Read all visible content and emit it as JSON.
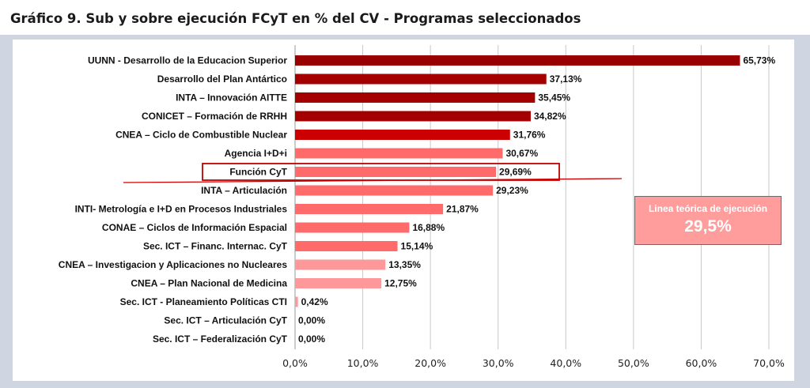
{
  "title": "Gráfico 9. Sub y sobre ejecución FCyT en % del CV - Programas seleccionados",
  "chart_data": {
    "type": "bar",
    "orientation": "horizontal",
    "categories": [
      "UUNN - Desarrollo de la Educacion Superior",
      "Desarrollo del Plan Antártico",
      "INTA – Innovación AITTE",
      "CONICET – Formación de RRHH",
      "CNEA – Ciclo de Combustible Nuclear",
      "Agencia I+D+i",
      "Función CyT",
      "INTA – Articulación",
      "INTI- Metrología e I+D en Procesos Industriales",
      "CONAE – Ciclos de Información Espacial",
      "Sec. ICT – Financ. Internac. CyT",
      "CNEA – Investigacion y Aplicaciones no Nucleares",
      "CNEA – Plan Nacional de Medicina",
      "Sec. ICT -  Planeamiento Políticas CTI",
      "Sec. ICT – Articulación CyT",
      "Sec. ICT – Federalización CyT"
    ],
    "values": [
      65.73,
      37.13,
      35.45,
      34.82,
      31.76,
      30.67,
      29.69,
      29.23,
      21.87,
      16.88,
      15.14,
      13.35,
      12.75,
      0.42,
      0.0,
      0.0
    ],
    "value_labels": [
      "65,73%",
      "37,13%",
      "35,45%",
      "34,82%",
      "31,76%",
      "30,67%",
      "29,69%",
      "29,23%",
      "21,87%",
      "16,88%",
      "15,14%",
      "13,35%",
      "12,75%",
      "0,42%",
      "0,00%",
      "0,00%"
    ],
    "bar_colors": [
      "#990000",
      "#a50000",
      "#a50000",
      "#a50000",
      "#cc0000",
      "#ff6b6b",
      "#ff6b6b",
      "#ff6b6b",
      "#ff6b6b",
      "#ff6b6b",
      "#ff6b6b",
      "#ff9999",
      "#ff9999",
      "#ff9999",
      "#ff9999",
      "#ff9999"
    ],
    "highlighted_category": "Función CyT",
    "xlim": [
      0,
      70
    ],
    "xticks": [
      "0,0%",
      "10,0%",
      "20,0%",
      "30,0%",
      "40,0%",
      "50,0%",
      "60,0%",
      "70,0%"
    ],
    "grid": true,
    "reference_line": {
      "value": 29.5,
      "label": "Linea teórica de ejecución",
      "value_label": "29,5%",
      "color": "#cc0000",
      "box_color": "#ff9c9c"
    }
  }
}
